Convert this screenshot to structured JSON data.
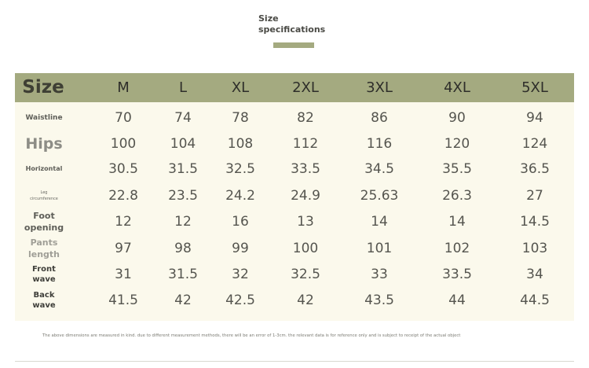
{
  "title": {
    "text": "Size\nspecifications",
    "accent_color": "#a4aa80"
  },
  "table": {
    "header_label": "Size",
    "sizes": [
      "M",
      "L",
      "XL",
      "2XL",
      "3XL",
      "4XL",
      "5XL"
    ],
    "rows": [
      {
        "label": "Waistline",
        "values": [
          "70",
          "74",
          "78",
          "82",
          "86",
          "90",
          "94"
        ]
      },
      {
        "label": "Hips",
        "values": [
          "100",
          "104",
          "108",
          "112",
          "116",
          "120",
          "124"
        ]
      },
      {
        "label": "Horizontal",
        "values": [
          "30.5",
          "31.5",
          "32.5",
          "33.5",
          "34.5",
          "35.5",
          "36.5"
        ]
      },
      {
        "label": "Leg\ncircumference",
        "values": [
          "22.8",
          "23.5",
          "24.2",
          "24.9",
          "25.63",
          "26.3",
          "27"
        ]
      },
      {
        "label": "Foot\nopening",
        "values": [
          "12",
          "12",
          "16",
          "13",
          "14",
          "14",
          "14.5"
        ]
      },
      {
        "label": "Pants\nlength",
        "values": [
          "97",
          "98",
          "99",
          "100",
          "101",
          "102",
          "103"
        ]
      },
      {
        "label": "Front\nwave",
        "values": [
          "31",
          "31.5",
          "32",
          "32.5",
          "33",
          "33.5",
          "34"
        ]
      },
      {
        "label": "Back\nwave",
        "values": [
          "41.5",
          "42",
          "42.5",
          "42",
          "43.5",
          "44",
          "44.5"
        ]
      }
    ],
    "header_bg": "#a4aa80",
    "body_bg": "#fbf9ec"
  },
  "footnote": "The above dimensions are measured in kind. due to different measurement methods, there will be an error of 1-3cm. the relevant data is for reference only and is subject to receipt of the actual object"
}
